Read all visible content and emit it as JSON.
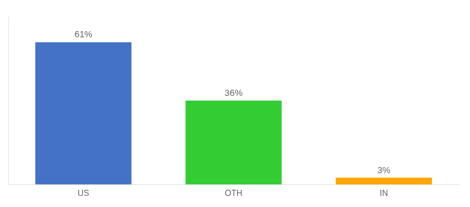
{
  "chart_data": {
    "type": "bar",
    "categories": [
      "US",
      "OTH",
      "IN"
    ],
    "values": [
      61,
      36,
      3
    ],
    "value_labels": [
      "61%",
      "36%",
      "3%"
    ],
    "colors": [
      "#4472c4",
      "#33cc33",
      "#ffa500"
    ],
    "ylim": [
      0,
      72
    ],
    "grid": false,
    "data_labels": true,
    "tick_labels": "x"
  }
}
